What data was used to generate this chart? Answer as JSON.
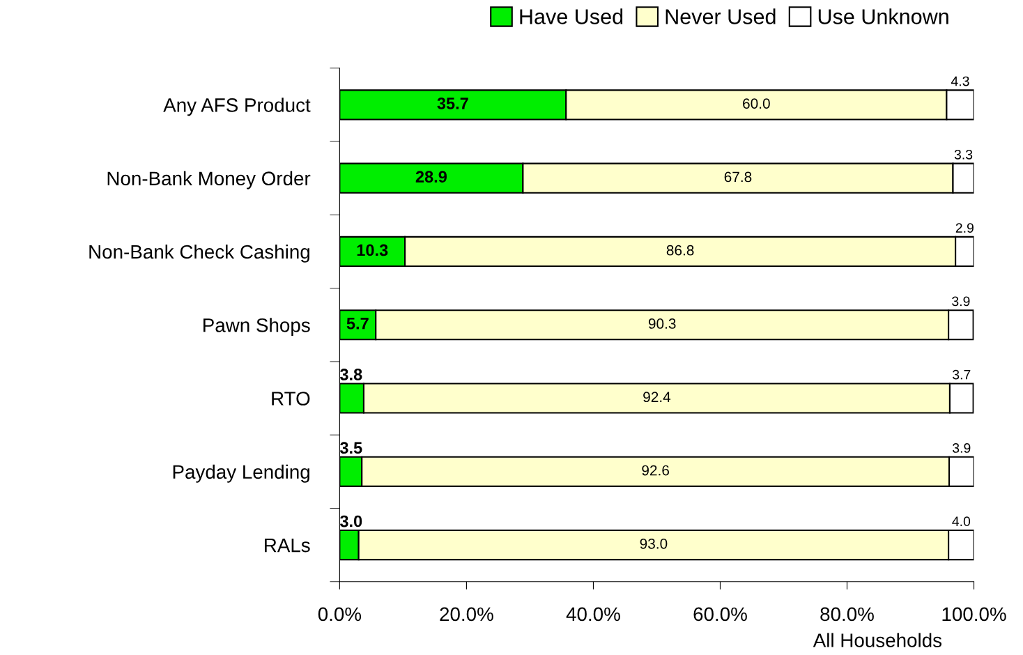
{
  "chart_data": {
    "type": "bar",
    "orientation": "horizontal",
    "stacked": true,
    "categories": [
      "Any AFS Product",
      "Non-Bank Money Order",
      "Non-Bank Check Cashing",
      "Pawn Shops",
      "RTO",
      "Payday Lending",
      "RALs"
    ],
    "series": [
      {
        "name": "Have Used",
        "color": "#00ee00",
        "values": [
          35.7,
          28.9,
          10.3,
          5.7,
          3.8,
          3.5,
          3.0
        ],
        "value_labels": [
          "35.7",
          "28.9",
          "10.3",
          "5.7",
          "3.8",
          "3.5",
          "3.0"
        ]
      },
      {
        "name": "Never Used",
        "color": "#ffffcc",
        "values": [
          60.0,
          67.8,
          86.8,
          90.3,
          92.4,
          92.6,
          93.0
        ],
        "value_labels": [
          "60.0",
          "67.8",
          "86.8",
          "90.3",
          "92.4",
          "92.6",
          "93.0"
        ]
      },
      {
        "name": "Use Unknown",
        "color": "#ffffff",
        "values": [
          4.3,
          3.3,
          2.9,
          3.9,
          3.7,
          3.9,
          4.0
        ],
        "value_labels": [
          "4.3",
          "3.3",
          "2.9",
          "3.9",
          "3.7",
          "3.9",
          "4.0"
        ]
      }
    ],
    "xlim": [
      0,
      100
    ],
    "xticks": [
      {
        "value": 0,
        "label": "0.0%"
      },
      {
        "value": 20,
        "label": "20.0%"
      },
      {
        "value": 40,
        "label": "40.0%"
      },
      {
        "value": 60,
        "label": "60.0%"
      },
      {
        "value": 80,
        "label": "80.0%"
      },
      {
        "value": 100,
        "label": "100.0%"
      }
    ],
    "xlabel": "All Households",
    "legend": "top",
    "grid": false
  }
}
